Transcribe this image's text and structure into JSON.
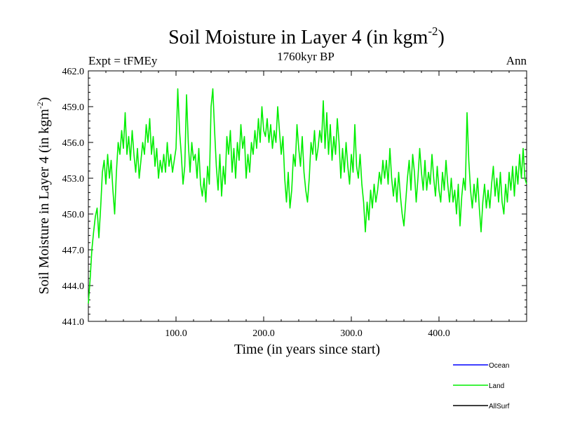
{
  "chart_data": {
    "type": "line",
    "title": "Soil Moisture in Layer 4 (in kgm",
    "title_superscript": "-2",
    "title_close": ")",
    "subtitle_left": "Expt = tFMEy",
    "subtitle_center": "1760kyr BP",
    "subtitle_right": "Ann",
    "xlabel": "Time (in years since start)",
    "ylabel": "Soil Moisture in Layer 4 (in kgm",
    "ylabel_superscript": "-2",
    "ylabel_close": ")",
    "xlim": [
      0,
      500
    ],
    "ylim": [
      441.0,
      462.0
    ],
    "x_ticks": [
      100,
      200,
      300,
      400
    ],
    "x_tick_labels": [
      "100.0",
      "200.0",
      "300.0",
      "400.0"
    ],
    "y_ticks": [
      441,
      444,
      447,
      450,
      453,
      456,
      459,
      462
    ],
    "y_tick_labels": [
      "441.0",
      "444.0",
      "447.0",
      "450.0",
      "453.0",
      "456.0",
      "459.0",
      "462.0"
    ],
    "series": [
      {
        "name": "Ocean",
        "color": "#0000ff",
        "points": []
      },
      {
        "name": "Land",
        "color": "#00ee00",
        "points": [
          [
            0,
            442.5
          ],
          [
            2,
            444.5
          ],
          [
            4,
            447.0
          ],
          [
            6,
            448.5
          ],
          [
            8,
            449.8
          ],
          [
            10,
            450.5
          ],
          [
            12,
            448.0
          ],
          [
            14,
            450.5
          ],
          [
            16,
            453.5
          ],
          [
            18,
            454.5
          ],
          [
            20,
            452.5
          ],
          [
            22,
            455.0
          ],
          [
            24,
            453.0
          ],
          [
            26,
            454.5
          ],
          [
            28,
            452.0
          ],
          [
            30,
            450.0
          ],
          [
            32,
            453.5
          ],
          [
            34,
            456.0
          ],
          [
            36,
            455.0
          ],
          [
            38,
            457.0
          ],
          [
            40,
            455.5
          ],
          [
            42,
            458.5
          ],
          [
            44,
            455.0
          ],
          [
            46,
            456.5
          ],
          [
            48,
            454.5
          ],
          [
            50,
            457.0
          ],
          [
            52,
            455.0
          ],
          [
            54,
            453.5
          ],
          [
            56,
            455.5
          ],
          [
            58,
            453.0
          ],
          [
            60,
            454.5
          ],
          [
            62,
            456.0
          ],
          [
            64,
            455.0
          ],
          [
            66,
            457.5
          ],
          [
            68,
            456.0
          ],
          [
            70,
            458.0
          ],
          [
            72,
            455.0
          ],
          [
            74,
            456.5
          ],
          [
            76,
            454.0
          ],
          [
            78,
            455.5
          ],
          [
            80,
            453.0
          ],
          [
            82,
            454.5
          ],
          [
            84,
            453.5
          ],
          [
            86,
            455.0
          ],
          [
            88,
            453.5
          ],
          [
            90,
            456.0
          ],
          [
            92,
            454.0
          ],
          [
            94,
            455.0
          ],
          [
            96,
            453.5
          ],
          [
            98,
            454.5
          ],
          [
            100,
            455.5
          ],
          [
            102,
            460.5
          ],
          [
            104,
            457.0
          ],
          [
            106,
            455.0
          ],
          [
            108,
            452.5
          ],
          [
            110,
            454.0
          ],
          [
            112,
            460.0
          ],
          [
            114,
            456.0
          ],
          [
            116,
            453.5
          ],
          [
            118,
            456.0
          ],
          [
            120,
            454.5
          ],
          [
            122,
            455.0
          ],
          [
            124,
            453.0
          ],
          [
            126,
            455.5
          ],
          [
            128,
            452.5
          ],
          [
            130,
            451.5
          ],
          [
            132,
            453.0
          ],
          [
            134,
            451.0
          ],
          [
            136,
            454.0
          ],
          [
            138,
            452.5
          ],
          [
            140,
            459.0
          ],
          [
            142,
            460.5
          ],
          [
            144,
            457.0
          ],
          [
            146,
            454.0
          ],
          [
            148,
            452.0
          ],
          [
            150,
            455.0
          ],
          [
            152,
            451.5
          ],
          [
            154,
            454.0
          ],
          [
            156,
            452.5
          ],
          [
            158,
            456.5
          ],
          [
            160,
            455.0
          ],
          [
            162,
            457.0
          ],
          [
            164,
            453.5
          ],
          [
            166,
            455.5
          ],
          [
            168,
            453.0
          ],
          [
            170,
            456.0
          ],
          [
            172,
            454.5
          ],
          [
            174,
            457.5
          ],
          [
            176,
            455.5
          ],
          [
            178,
            456.5
          ],
          [
            180,
            453.0
          ],
          [
            182,
            455.0
          ],
          [
            184,
            453.5
          ],
          [
            186,
            456.0
          ],
          [
            188,
            455.0
          ],
          [
            190,
            457.0
          ],
          [
            192,
            455.5
          ],
          [
            194,
            458.0
          ],
          [
            196,
            456.0
          ],
          [
            198,
            459.0
          ],
          [
            200,
            457.0
          ],
          [
            202,
            456.5
          ],
          [
            204,
            458.0
          ],
          [
            206,
            456.0
          ],
          [
            208,
            457.5
          ],
          [
            210,
            455.5
          ],
          [
            212,
            457.0
          ],
          [
            214,
            456.0
          ],
          [
            216,
            459.0
          ],
          [
            218,
            457.0
          ],
          [
            220,
            455.0
          ],
          [
            222,
            456.5
          ],
          [
            224,
            453.0
          ],
          [
            226,
            451.0
          ],
          [
            228,
            453.5
          ],
          [
            230,
            450.5
          ],
          [
            232,
            452.0
          ],
          [
            234,
            455.0
          ],
          [
            236,
            454.0
          ],
          [
            238,
            457.5
          ],
          [
            240,
            455.5
          ],
          [
            242,
            454.0
          ],
          [
            244,
            456.5
          ],
          [
            246,
            453.5
          ],
          [
            248,
            452.0
          ],
          [
            250,
            451.0
          ],
          [
            252,
            453.0
          ],
          [
            254,
            456.0
          ],
          [
            256,
            455.0
          ],
          [
            258,
            457.0
          ],
          [
            260,
            454.5
          ],
          [
            262,
            455.5
          ],
          [
            264,
            457.0
          ],
          [
            266,
            456.0
          ],
          [
            268,
            459.5
          ],
          [
            270,
            455.5
          ],
          [
            272,
            458.5
          ],
          [
            274,
            455.0
          ],
          [
            276,
            457.5
          ],
          [
            278,
            454.5
          ],
          [
            280,
            456.5
          ],
          [
            282,
            455.0
          ],
          [
            284,
            458.0
          ],
          [
            286,
            456.0
          ],
          [
            288,
            453.0
          ],
          [
            290,
            455.5
          ],
          [
            292,
            453.5
          ],
          [
            294,
            456.0
          ],
          [
            296,
            454.0
          ],
          [
            298,
            452.5
          ],
          [
            300,
            455.0
          ],
          [
            302,
            453.5
          ],
          [
            304,
            457.5
          ],
          [
            306,
            454.0
          ],
          [
            308,
            453.0
          ],
          [
            310,
            455.0
          ],
          [
            312,
            452.5
          ],
          [
            314,
            451.0
          ],
          [
            316,
            448.5
          ],
          [
            318,
            451.0
          ],
          [
            320,
            449.5
          ],
          [
            322,
            452.0
          ],
          [
            324,
            450.5
          ],
          [
            326,
            452.5
          ],
          [
            328,
            451.0
          ],
          [
            330,
            452.0
          ],
          [
            332,
            453.5
          ],
          [
            334,
            452.5
          ],
          [
            336,
            454.5
          ],
          [
            338,
            453.0
          ],
          [
            340,
            454.5
          ],
          [
            342,
            452.5
          ],
          [
            344,
            455.5
          ],
          [
            346,
            453.0
          ],
          [
            348,
            451.5
          ],
          [
            350,
            453.0
          ],
          [
            352,
            451.0
          ],
          [
            354,
            453.5
          ],
          [
            356,
            451.5
          ],
          [
            358,
            450.0
          ],
          [
            360,
            449.0
          ],
          [
            362,
            451.0
          ],
          [
            364,
            453.0
          ],
          [
            366,
            454.5
          ],
          [
            368,
            452.0
          ],
          [
            370,
            455.0
          ],
          [
            372,
            453.5
          ],
          [
            374,
            451.0
          ],
          [
            376,
            453.0
          ],
          [
            378,
            455.5
          ],
          [
            380,
            453.5
          ],
          [
            382,
            452.0
          ],
          [
            384,
            454.5
          ],
          [
            386,
            452.0
          ],
          [
            388,
            453.5
          ],
          [
            390,
            452.5
          ],
          [
            392,
            455.0
          ],
          [
            394,
            453.0
          ],
          [
            396,
            451.5
          ],
          [
            398,
            454.0
          ],
          [
            400,
            452.0
          ],
          [
            402,
            451.0
          ],
          [
            404,
            453.5
          ],
          [
            406,
            452.0
          ],
          [
            408,
            454.5
          ],
          [
            410,
            452.5
          ],
          [
            412,
            451.0
          ],
          [
            414,
            453.0
          ],
          [
            416,
            451.0
          ],
          [
            418,
            452.0
          ],
          [
            420,
            450.0
          ],
          [
            422,
            452.5
          ],
          [
            424,
            449.0
          ],
          [
            426,
            451.5
          ],
          [
            428,
            453.0
          ],
          [
            430,
            452.0
          ],
          [
            432,
            458.5
          ],
          [
            434,
            454.5
          ],
          [
            436,
            452.0
          ],
          [
            438,
            450.5
          ],
          [
            440,
            452.5
          ],
          [
            442,
            451.0
          ],
          [
            444,
            453.0
          ],
          [
            446,
            450.5
          ],
          [
            448,
            448.5
          ],
          [
            450,
            451.0
          ],
          [
            452,
            452.5
          ],
          [
            454,
            450.5
          ],
          [
            456,
            452.0
          ],
          [
            458,
            450.5
          ],
          [
            460,
            452.5
          ],
          [
            462,
            454.0
          ],
          [
            464,
            451.5
          ],
          [
            466,
            453.0
          ],
          [
            468,
            451.0
          ],
          [
            470,
            453.5
          ],
          [
            472,
            451.0
          ],
          [
            474,
            450.0
          ],
          [
            476,
            452.5
          ],
          [
            478,
            451.0
          ],
          [
            480,
            453.5
          ],
          [
            482,
            452.0
          ],
          [
            484,
            454.0
          ],
          [
            486,
            451.5
          ],
          [
            488,
            454.0
          ],
          [
            490,
            452.5
          ],
          [
            492,
            455.0
          ],
          [
            494,
            453.0
          ],
          [
            496,
            455.5
          ],
          [
            498,
            453.0
          ],
          [
            500,
            452.5
          ]
        ]
      },
      {
        "name": "AllSurf",
        "color": "#000000",
        "points": []
      }
    ],
    "legend_position": "bottom-right"
  }
}
